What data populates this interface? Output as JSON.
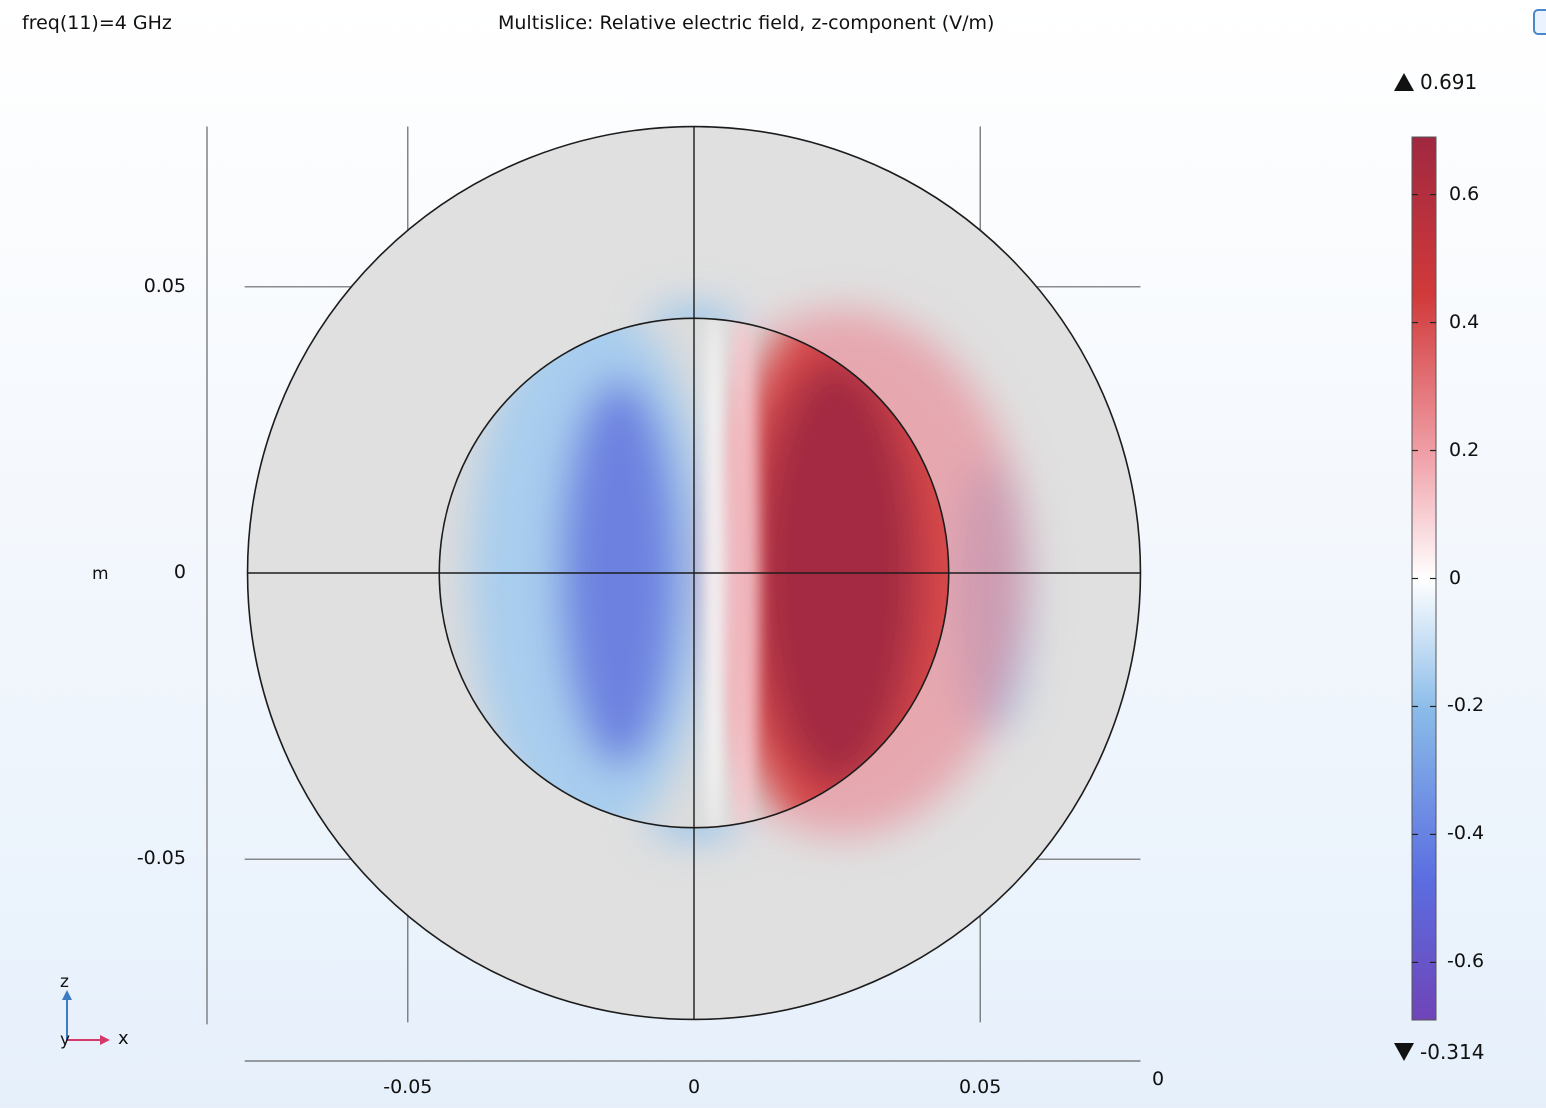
{
  "plot": {
    "param_label": "freq(11)=4 GHz",
    "title": "Multislice: Relative electric field, z-component (V/m)",
    "unit_label": "m"
  },
  "axes_triad": {
    "z_label": "z",
    "y_label": "y",
    "x_label": "x"
  },
  "colorbar": {
    "max_label": "0.691",
    "min_label": "-0.314",
    "ticks": [
      "0.6",
      "0.4",
      "0.2",
      "0",
      "-0.2",
      "-0.4",
      "-0.6"
    ],
    "colors": [
      "#6f44b8",
      "#5b6ee0",
      "#89bbe9",
      "#ffffff",
      "#f0a0a8",
      "#d13a3a",
      "#a02840"
    ]
  },
  "chart_data": {
    "type": "heatmap",
    "title": "Multislice: Relative electric field, z-component (V/m)",
    "field_range": {
      "min": -0.314,
      "max": 0.691
    },
    "color_range": [
      -0.69,
      0.69
    ],
    "x_ticks": [
      "-0.05",
      "0",
      "0.05"
    ],
    "y_ticks": [
      "0.05",
      "0",
      "-0.05"
    ],
    "depth_tick": "0",
    "xlim": [
      -0.0785,
      0.078
    ],
    "ylim": [
      -0.0785,
      0.078
    ],
    "outer_circle_radius": 0.078,
    "inner_circle_radius": 0.0445,
    "grid": true,
    "colormap": "RdBu (reversed)",
    "features": [
      {
        "name": "negative lobe",
        "x": -0.013,
        "y": 0.0,
        "value": -0.314
      },
      {
        "name": "positive lobe",
        "x": 0.026,
        "y": 0.0,
        "value": 0.691
      },
      {
        "name": "outer negative fringe",
        "x": 0.052,
        "y": -0.004,
        "value": -0.15
      }
    ]
  }
}
